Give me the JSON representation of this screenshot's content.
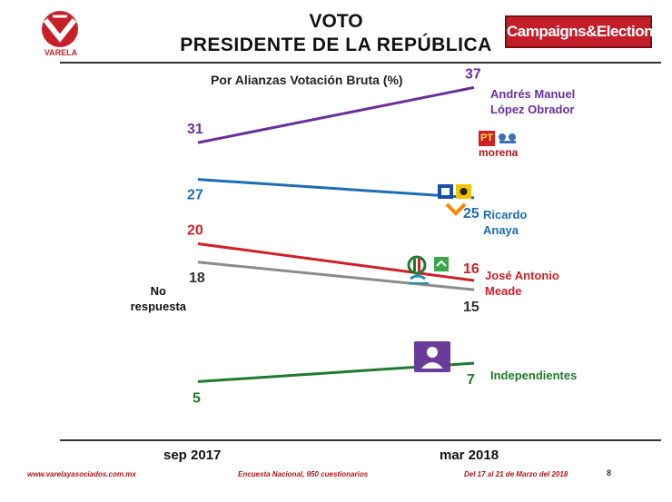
{
  "header": {
    "title_line1": "VOTO",
    "title_line2": "PRESIDENTE DE LA REPÚBLICA",
    "left_logo_text": "VARELA",
    "right_logo_text": "Campaigns&Elections"
  },
  "colors": {
    "amlo": "#6a2f9e",
    "anaya": "#1b6db5",
    "meade": "#d11f26",
    "no_respuesta": "#8c8c8c",
    "independientes": "#1f7a2f",
    "footer": "#b0141c"
  },
  "chart_data": {
    "type": "line",
    "title": "Por Alianzas Votación Bruta (%)",
    "categories": [
      "sep 2017",
      "mar 2018"
    ],
    "ylabel": "",
    "xlabel": "",
    "ylim": [
      0,
      40
    ],
    "series": [
      {
        "name": "Andrés Manuel López Obrador",
        "label_lines": [
          "Andrés Manuel",
          "López Obrador"
        ],
        "values": [
          31,
          37
        ],
        "value_labels": [
          "31",
          "37"
        ],
        "color_key": "amlo"
      },
      {
        "name": "Ricardo Anaya",
        "label_lines": [
          "Ricardo",
          "Anaya"
        ],
        "values": [
          27,
          25
        ],
        "value_labels": [
          "27",
          "25"
        ],
        "color_key": "anaya"
      },
      {
        "name": "José Antonio Meade",
        "label_lines": [
          "José Antonio",
          "Meade"
        ],
        "values": [
          20,
          16
        ],
        "value_labels": [
          "20",
          "16"
        ],
        "color_key": "meade"
      },
      {
        "name": "No respuesta",
        "label_lines": [
          "No",
          "respuesta"
        ],
        "values": [
          18,
          15
        ],
        "value_labels": [
          "18",
          "15"
        ],
        "color_key": "no_respuesta"
      },
      {
        "name": "Independientes",
        "label_lines": [
          "Independientes"
        ],
        "values": [
          5,
          7
        ],
        "value_labels": [
          "5",
          "7"
        ],
        "color_key": "independientes"
      }
    ]
  },
  "party_badges": {
    "amlo": {
      "pt": "PT",
      "morena": "morena"
    }
  },
  "footer": {
    "website": "www.varelayasociados.com.mx",
    "survey": "Encuesta Nacional, 950 cuestionarios",
    "dates": "Del 17 al 21 de Marzo del 2018",
    "page": "8"
  }
}
